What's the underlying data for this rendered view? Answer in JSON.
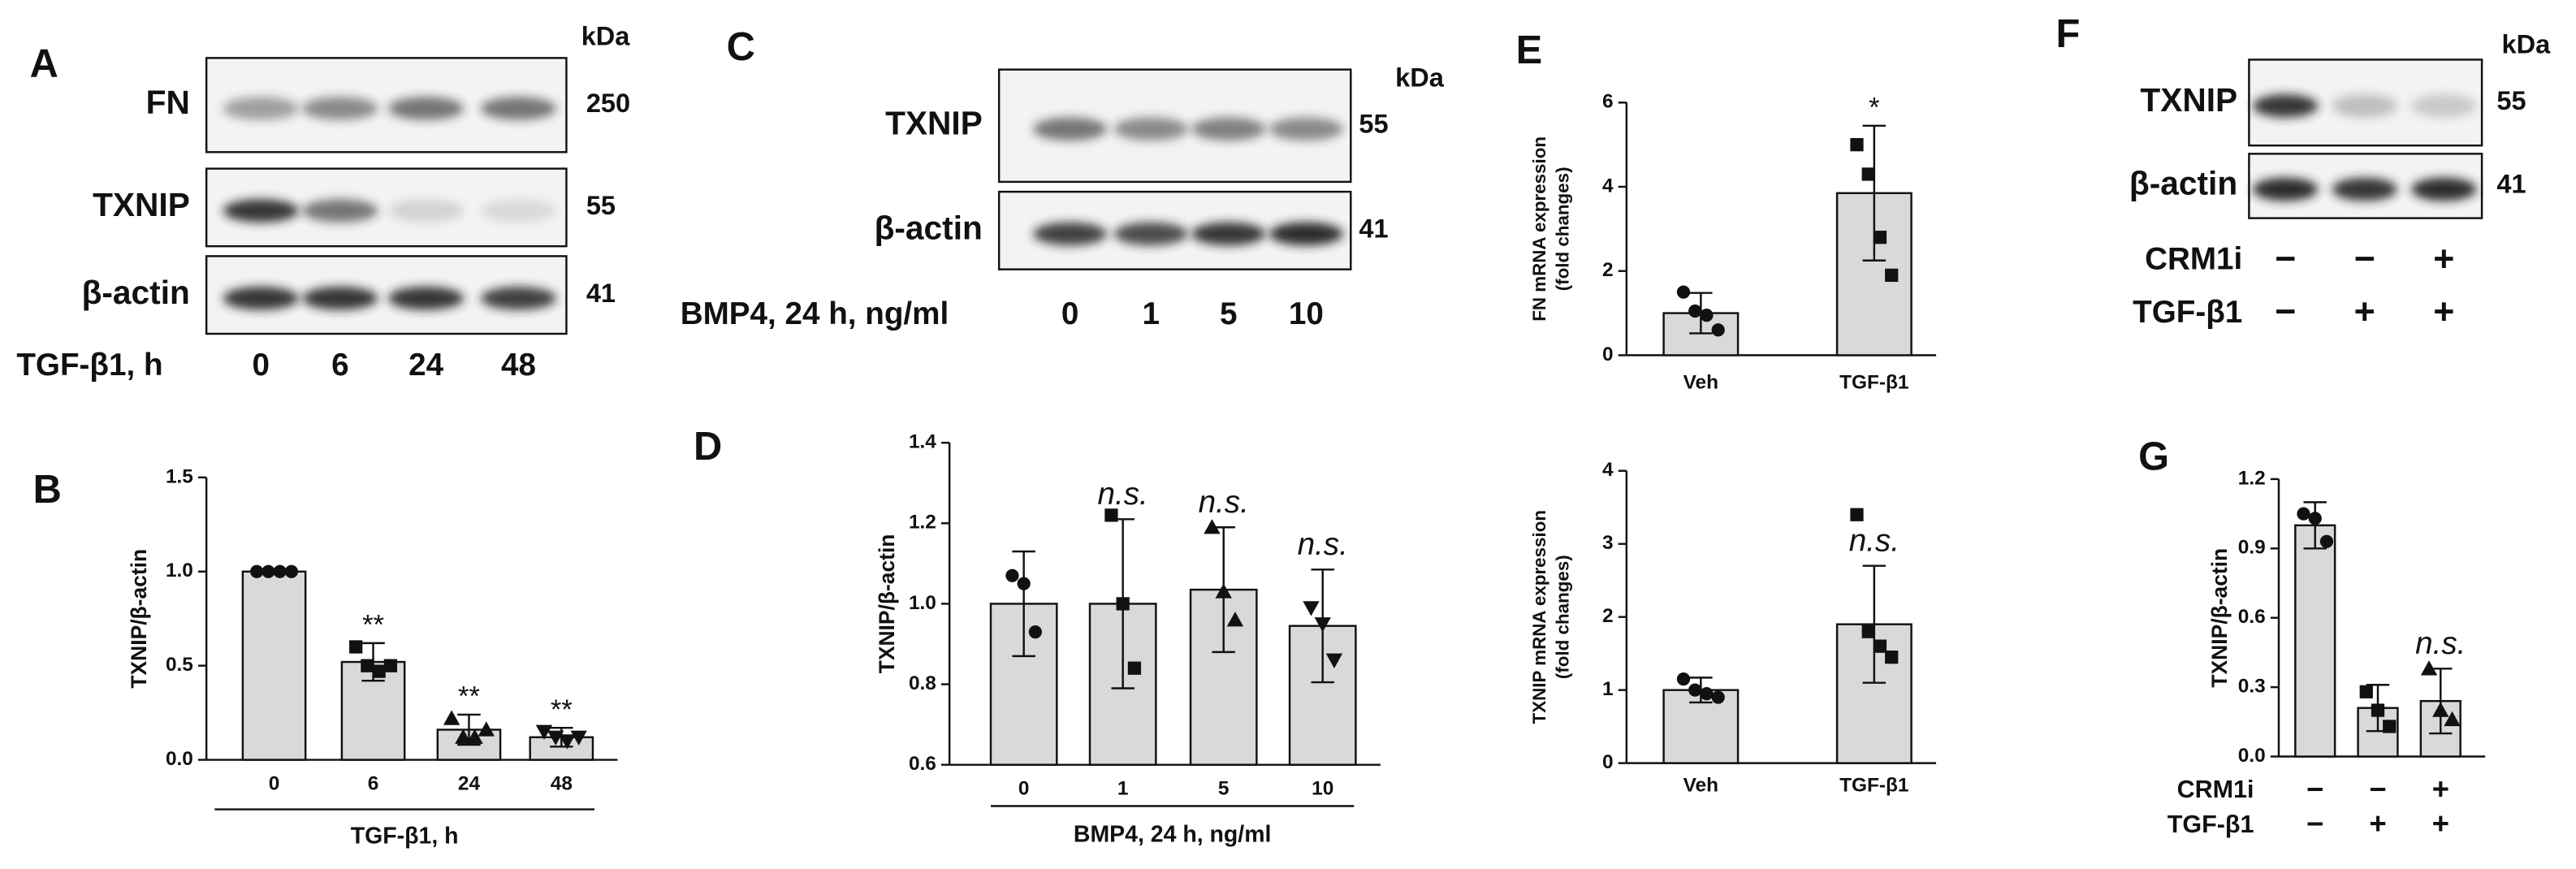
{
  "chart_data": [
    {
      "type": "bar",
      "panel": "B",
      "ylabel": [
        "TXNIP/β-actin"
      ],
      "xlabel": "TGF-β1, h",
      "categories": [
        "0",
        "6",
        "24",
        "48"
      ],
      "values": [
        1.0,
        0.52,
        0.16,
        0.12
      ],
      "errors": [
        0,
        0.1,
        0.08,
        0.05
      ],
      "points": [
        [
          1.0,
          1.0,
          1.0,
          1.0
        ],
        [
          0.6,
          0.5,
          0.47,
          0.5
        ],
        [
          0.22,
          0.12,
          0.12,
          0.16
        ],
        [
          0.15,
          0.12,
          0.1,
          0.12
        ]
      ],
      "annotations": [
        null,
        "**",
        "**",
        "**"
      ],
      "ylim": [
        0,
        1.5
      ],
      "yticks": [
        {
          "value": 0,
          "label": "0.0"
        },
        0.5,
        {
          "value": 1,
          "label": "1.0"
        },
        1.5
      ],
      "color": "#d9d9d9"
    },
    {
      "type": "bar",
      "panel": "D",
      "ylabel": [
        "TXNIP/β-actin"
      ],
      "xlabel": "BMP4, 24 h, ng/ml",
      "categories": [
        "0",
        "1",
        "5",
        "10"
      ],
      "values": [
        1.0,
        1.0,
        1.035,
        0.945
      ],
      "errors": [
        0.13,
        0.21,
        0.155,
        0.14
      ],
      "points": [
        [
          1.07,
          1.05,
          0.93
        ],
        [
          1.22,
          1.0,
          0.84
        ],
        [
          1.19,
          1.03,
          0.96
        ],
        [
          0.99,
          0.95,
          0.86
        ]
      ],
      "annotations": [
        null,
        "n.s.",
        "n.s.",
        "n.s."
      ],
      "ylim": [
        0.6,
        1.4
      ],
      "yticks": [
        0.6,
        0.8,
        {
          "value": 1,
          "label": "1.0"
        },
        1.2,
        1.4
      ],
      "color": "#d9d9d9"
    },
    {
      "type": "bar",
      "panel": "E",
      "ylabel": [
        "FN mRNA expression",
        "(fold changes)"
      ],
      "categories": [
        "Veh",
        "TGF-β1"
      ],
      "values": [
        1.0,
        3.85
      ],
      "errors": [
        0.48,
        1.6
      ],
      "points": [
        [
          1.5,
          1.05,
          0.95,
          0.6
        ],
        [
          5.0,
          4.3,
          2.8,
          1.9
        ]
      ],
      "annotations": [
        null,
        "*"
      ],
      "ylim": [
        0,
        6
      ],
      "yticks": [
        0,
        2,
        4,
        6
      ],
      "color": "#d9d9d9"
    },
    {
      "type": "bar",
      "ylabel": [
        "TXNIP mRNA expression",
        "(fold changes)"
      ],
      "categories": [
        "Veh",
        "TGF-β1"
      ],
      "values": [
        1.0,
        1.9
      ],
      "errors": [
        0.17,
        0.8
      ],
      "points": [
        [
          1.15,
          1.0,
          0.95,
          0.9
        ],
        [
          3.4,
          1.8,
          1.6,
          1.45
        ]
      ],
      "annotations": [
        null,
        "n.s."
      ],
      "ylim": [
        0,
        4
      ],
      "yticks": [
        0,
        1,
        2,
        3,
        4
      ],
      "color": "#d9d9d9"
    },
    {
      "type": "bar",
      "panel": "G",
      "ylabel": [
        "TXNIP/β-actin"
      ],
      "conditions": [
        {
          "name": "CRM1i",
          "values": [
            "−",
            "−",
            "+"
          ]
        },
        {
          "name": "TGF-β1",
          "values": [
            "−",
            "+",
            "+"
          ]
        }
      ],
      "values": [
        1.0,
        0.21,
        0.24
      ],
      "errors": [
        0.1,
        0.1,
        0.14
      ],
      "points": [
        [
          1.05,
          1.03,
          0.93
        ],
        [
          0.28,
          0.2,
          0.13
        ],
        [
          0.38,
          0.2,
          0.16
        ]
      ],
      "annotations": [
        null,
        null,
        "n.s."
      ],
      "ylim": [
        0,
        1.2
      ],
      "yticks": [
        {
          "value": 0,
          "label": "0.0"
        },
        0.3,
        0.6,
        0.9,
        1.2
      ],
      "color": "#d9d9d9"
    }
  ],
  "blots": [
    {
      "panel": "A",
      "unit": "kDa",
      "rows": [
        {
          "protein": "FN",
          "kda": 250
        },
        {
          "protein": "TXNIP",
          "kda": 55
        },
        {
          "protein": "β-actin",
          "kda": 41
        }
      ],
      "lane_label": "TGF-β1, h",
      "lanes": [
        "0",
        "6",
        "24",
        "48"
      ]
    },
    {
      "panel": "C",
      "unit": "kDa",
      "rows": [
        {
          "protein": "TXNIP",
          "kda": 55
        },
        {
          "protein": "β-actin",
          "kda": 41
        }
      ],
      "lane_label": "BMP4, 24 h, ng/ml",
      "lanes": [
        "0",
        "1",
        "5",
        "10"
      ]
    },
    {
      "panel": "F",
      "unit": "kDa",
      "rows": [
        {
          "protein": "TXNIP",
          "kda": 55
        },
        {
          "protein": "β-actin",
          "kda": 41
        }
      ],
      "conditions": [
        {
          "name": "CRM1i",
          "values": [
            "−",
            "−",
            "+"
          ]
        },
        {
          "name": "TGF-β1",
          "values": [
            "−",
            "+",
            "+"
          ]
        }
      ]
    }
  ]
}
